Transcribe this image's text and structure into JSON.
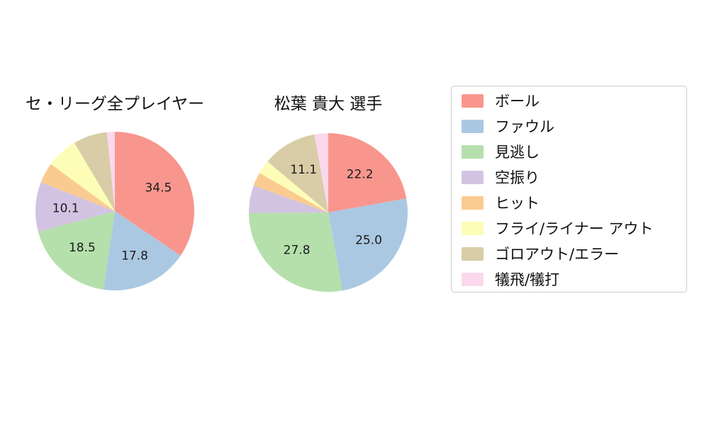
{
  "background": "#ffffff",
  "chart_data": [
    {
      "type": "pie",
      "title": "セ・リーグ全プレイヤー",
      "labels": [
        "ボール",
        "ファウル",
        "見逃し",
        "空振り",
        "ヒット",
        "フライ/ライナー アウト",
        "ゴロアウト/エラー",
        "犠飛/犠打"
      ],
      "values": [
        34.5,
        17.8,
        18.5,
        10.1,
        4.2,
        6.4,
        6.9,
        1.6
      ],
      "colors": [
        "#F8968E",
        "#ABC8E2",
        "#B5E0AC",
        "#D3C3E2",
        "#FACB90",
        "#FDFDB8",
        "#D8CDA7",
        "#FBD8EC"
      ],
      "start": "top",
      "direction": "clockwise",
      "label_min_pct": 10,
      "label_format": "one-decimal",
      "legend_position": "right"
    },
    {
      "type": "pie",
      "title": "松葉 貴大  選手",
      "labels": [
        "ボール",
        "ファウル",
        "見逃し",
        "空振り",
        "ヒット",
        "フライ/ライナー アウト",
        "ゴロアウト/エラー",
        "犠飛/犠打"
      ],
      "values": [
        22.2,
        25.0,
        27.8,
        5.6,
        2.8,
        2.8,
        11.1,
        2.8
      ],
      "colors": [
        "#F8968E",
        "#ABC8E2",
        "#B5E0AC",
        "#D3C3E2",
        "#FACB90",
        "#FDFDB8",
        "#D8CDA7",
        "#FBD8EC"
      ],
      "start": "top",
      "direction": "clockwise",
      "label_min_pct": 10,
      "label_format": "one-decimal",
      "legend_position": "right"
    }
  ],
  "legend": {
    "items": [
      {
        "label": "ボール",
        "color": "#F8968E"
      },
      {
        "label": "ファウル",
        "color": "#ABC8E2"
      },
      {
        "label": "見逃し",
        "color": "#B5E0AC"
      },
      {
        "label": "空振り",
        "color": "#D3C3E2"
      },
      {
        "label": "ヒット",
        "color": "#FACB90"
      },
      {
        "label": "フライ/ライナー アウト",
        "color": "#FDFDB8"
      },
      {
        "label": "ゴロアウト/エラー",
        "color": "#D8CDA7"
      },
      {
        "label": "犠飛/犠打",
        "color": "#FBD8EC"
      }
    ]
  }
}
